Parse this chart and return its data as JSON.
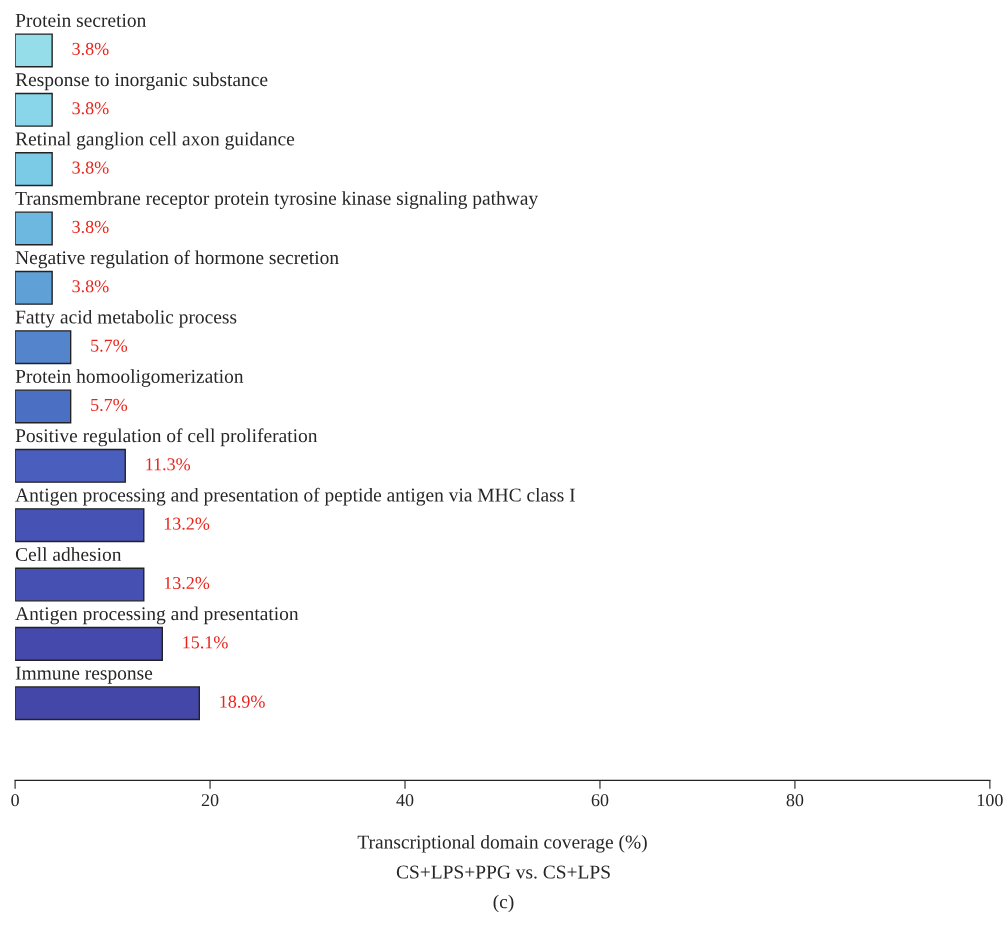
{
  "chart_data": {
    "type": "bar",
    "orientation": "horizontal",
    "categories": [
      "Protein secretion",
      "Response to inorganic substance",
      "Retinal ganglion cell axon guidance",
      "Transmembrane receptor protein tyrosine kinase signaling pathway",
      "Negative regulation of hormone secretion",
      "Fatty acid metabolic process",
      "Protein homooligomerization",
      "Positive regulation of cell proliferation",
      "Antigen processing and presentation of peptide antigen via MHC class I",
      "Cell adhesion",
      "Antigen processing and presentation",
      "Immune response"
    ],
    "values": [
      3.8,
      3.8,
      3.8,
      3.8,
      3.8,
      5.7,
      5.7,
      11.3,
      13.2,
      13.2,
      15.1,
      18.9
    ],
    "value_labels": [
      "3.8%",
      "3.8%",
      "3.8%",
      "3.8%",
      "3.8%",
      "5.7%",
      "5.7%",
      "11.3%",
      "13.2%",
      "13.2%",
      "15.1%",
      "18.9%"
    ],
    "colors": [
      "#94dde9",
      "#89d6ea",
      "#7ccbe6",
      "#6db8e0",
      "#5fa0d6",
      "#5384cc",
      "#4b6fc3",
      "#495ebd",
      "#4752b5",
      "#464fb2",
      "#4549ab",
      "#4447a7"
    ],
    "xlim": [
      0,
      100
    ],
    "xticks": [
      0,
      20,
      40,
      60,
      80,
      100
    ],
    "xlabel": "Transcriptional domain coverage (%)",
    "annotations": [
      "CS+LPS+PPG vs. CS+LPS",
      "(c)"
    ],
    "grid": false
  }
}
